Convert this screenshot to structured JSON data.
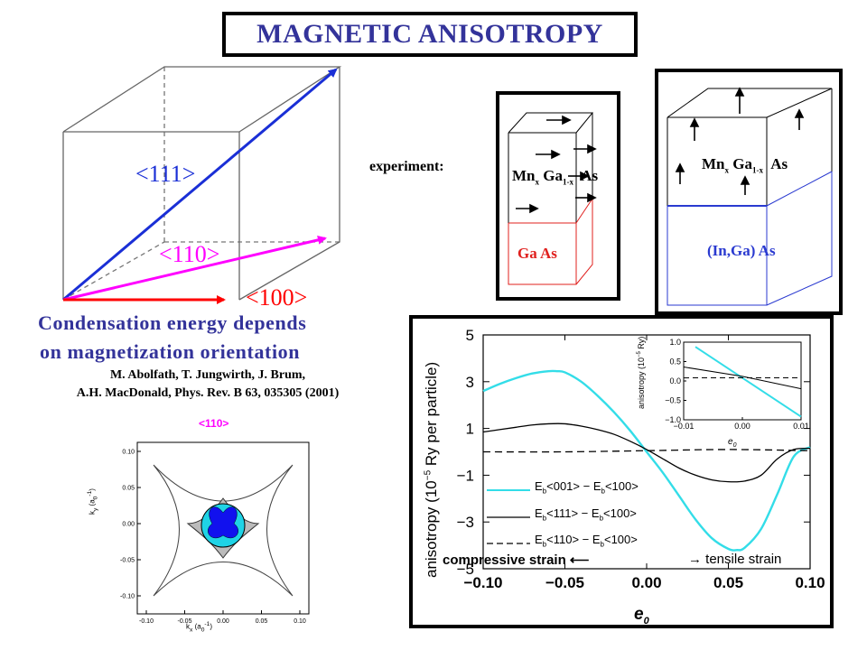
{
  "title": "MAGNETIC ANISOTROPY",
  "cube": {
    "labels": {
      "d111": "<111>",
      "d110": "<110>",
      "d100": "<100>"
    },
    "colors": {
      "d111": "#1a2fd6",
      "d110": "#ff00ff",
      "d100": "#ff0000"
    }
  },
  "caption": {
    "line1": "Condensation energy depends",
    "line2": "on magnetization orientation"
  },
  "reference": {
    "line1": "M. Abolfath, T. Jungwirth, J. Brum,",
    "line2": "A.H. MacDonald, Phys. Rev. B 63, 035305 (2001)"
  },
  "experiment_label": "experiment:",
  "samples": [
    {
      "top_layer": {
        "mn": "Mn",
        "mn_sub": "x",
        "ga": "Ga",
        "ga_sub": "1-x",
        "as": "As"
      },
      "substrate": "Ga As",
      "substrate_color": "#e0201e"
    },
    {
      "top_layer": {
        "mn": "Mn",
        "mn_sub": "x",
        "ga": "Ga",
        "ga_sub": "1-x",
        "as": "As"
      },
      "substrate": "(In,Ga) As",
      "substrate_color": "#2a3ad0"
    }
  ],
  "fermi_plot": {
    "title": "<110>",
    "title_color": "#ff00ff",
    "xlabel_main": "k",
    "xlabel_sub": "x",
    "xlabel_unit": "(a",
    "xlabel_unit_sub": "0",
    "xlabel_unit_sup": "-1",
    "xlabel_unit_close": ")",
    "ylabel_main": "k",
    "ylabel_sub": "y",
    "ylabel_unit": "(a",
    "ylabel_unit_sub": "0",
    "ylabel_unit_sup": "-1",
    "ylabel_unit_close": ")",
    "ticks": [
      "-0.10",
      "-0.05",
      "0.00",
      "0.05",
      "0.10"
    ]
  },
  "chart_data": [
    {
      "type": "line",
      "xlabel": "e0",
      "ylabel": "anisotropy (10^-5 Ry per particle)",
      "xlim": [
        -0.1,
        0.1
      ],
      "ylim": [
        -5,
        5
      ],
      "x_ticks": [
        "-0.10",
        "-0.05",
        "0.00",
        "0.05",
        "0.10"
      ],
      "y_ticks": [
        "5",
        "3",
        "1",
        "-1",
        "-3",
        "-5"
      ],
      "series": [
        {
          "name": "Eb<001> - Eb<100>",
          "color": "#33dde8",
          "style": "solid",
          "x": [
            -0.1,
            -0.09,
            -0.08,
            -0.07,
            -0.06,
            -0.055,
            -0.05,
            -0.04,
            -0.03,
            -0.02,
            -0.01,
            0.0,
            0.01,
            0.02,
            0.03,
            0.04,
            0.05,
            0.055,
            0.06,
            0.07,
            0.08,
            0.09,
            0.1
          ],
          "y": [
            2.6,
            2.9,
            3.15,
            3.35,
            3.45,
            3.45,
            3.4,
            3.0,
            2.4,
            1.7,
            0.9,
            0.0,
            -0.9,
            -1.9,
            -2.9,
            -3.7,
            -4.15,
            -4.2,
            -4.1,
            -3.3,
            -1.8,
            -0.2,
            0.2
          ]
        },
        {
          "name": "Eb<111> - Eb<100>",
          "color": "#000000",
          "style": "solid",
          "x": [
            -0.1,
            -0.09,
            -0.08,
            -0.07,
            -0.06,
            -0.05,
            -0.04,
            -0.03,
            -0.02,
            -0.01,
            0.0,
            0.01,
            0.02,
            0.03,
            0.04,
            0.05,
            0.06,
            0.07,
            0.08,
            0.09,
            0.1
          ],
          "y": [
            0.85,
            0.95,
            1.05,
            1.15,
            1.2,
            1.2,
            1.1,
            0.95,
            0.75,
            0.45,
            0.1,
            -0.3,
            -0.7,
            -1.0,
            -1.2,
            -1.28,
            -1.25,
            -1.0,
            -0.3,
            0.1,
            0.15
          ]
        },
        {
          "name": "Eb<110> - Eb<100>",
          "color": "#000000",
          "style": "dashed",
          "x": [
            -0.1,
            -0.05,
            0.0,
            0.05,
            0.1
          ],
          "y": [
            0.0,
            0.0,
            0.05,
            0.1,
            0.05
          ]
        }
      ],
      "annotations": [
        "compressive strain ←",
        "→ tensile strain",
        "e0"
      ],
      "legend_position": "lower-left"
    },
    {
      "type": "line",
      "title": "inset",
      "xlim": [
        -0.01,
        0.01
      ],
      "ylim": [
        -1.0,
        1.0
      ],
      "x_ticks": [
        "-0.01",
        "0.00",
        "0.01"
      ],
      "y_ticks": [
        "1.0",
        "0.5",
        "0.0",
        "-0.5",
        "-1.0"
      ],
      "ylabel": "anisotropy (10^-5 Ry)",
      "series": [
        {
          "color": "#33dde8",
          "style": "solid",
          "x": [
            -0.008,
            0.0,
            0.01
          ],
          "y": [
            0.88,
            0.08,
            -0.92
          ]
        },
        {
          "color": "#000000",
          "style": "solid",
          "x": [
            -0.01,
            0.0,
            0.01
          ],
          "y": [
            0.36,
            0.12,
            -0.2
          ]
        },
        {
          "color": "#000000",
          "style": "dashed",
          "x": [
            -0.01,
            0.01
          ],
          "y": [
            0.08,
            0.08
          ]
        }
      ]
    }
  ],
  "main_plot_text": {
    "ylabel_a": "anisotropy (10",
    "ylabel_sup": "−5",
    "ylabel_b": " Ry per particle)",
    "xlabel_main": "e",
    "xlabel_sub": "0",
    "e0_main": "e",
    "e0_sub": "0",
    "compressive": "compressive strain",
    "tensile": "tensile strain",
    "left_arrow": "⟵",
    "right_arrow": "→",
    "legend": [
      {
        "prefix": "E",
        "sub": "b",
        "text": "<001> − E",
        "sub2": "b",
        "text2": "<100>"
      },
      {
        "prefix": "E",
        "sub": "b",
        "text": "<111> − E",
        "sub2": "b",
        "text2": "<100>"
      },
      {
        "prefix": "E",
        "sub": "b",
        "text": "<110> − E",
        "sub2": "b",
        "text2": "<100>"
      }
    ],
    "inset_ylabel_a": "anisotropy (10",
    "inset_ylabel_sup": "−5",
    "inset_ylabel_b": " Ry)"
  }
}
